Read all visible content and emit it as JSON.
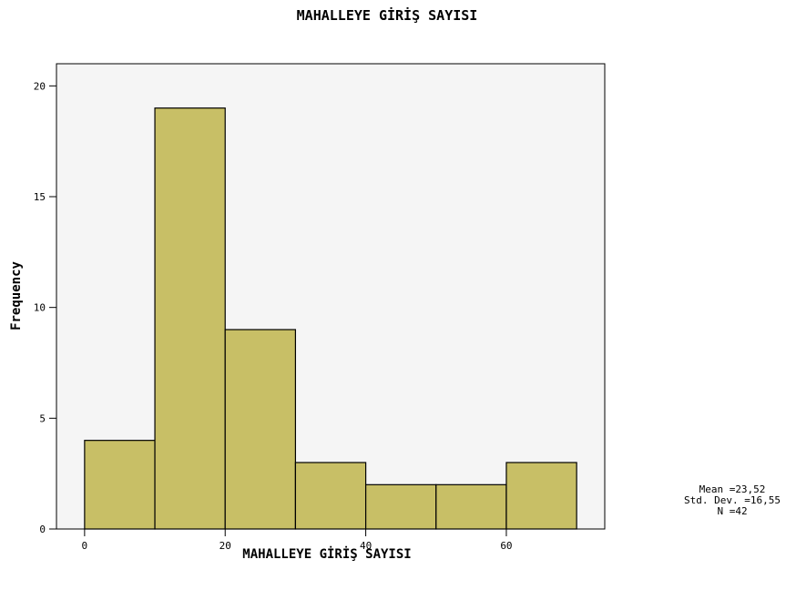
{
  "chart_data": {
    "type": "bar",
    "title": "MAHALLEYE GİRİŞ SAYISI",
    "xlabel": "MAHALLEYE GİRİŞ SAYISI",
    "ylabel": "Frequency",
    "bins": [
      {
        "start": 0,
        "end": 10,
        "count": 4
      },
      {
        "start": 10,
        "end": 20,
        "count": 19
      },
      {
        "start": 20,
        "end": 30,
        "count": 9
      },
      {
        "start": 30,
        "end": 40,
        "count": 3
      },
      {
        "start": 40,
        "end": 50,
        "count": 2
      },
      {
        "start": 50,
        "end": 60,
        "count": 2
      },
      {
        "start": 60,
        "end": 70,
        "count": 3
      }
    ],
    "xticks": [
      0,
      20,
      40,
      60
    ],
    "yticks": [
      0,
      5,
      10,
      15,
      20
    ],
    "xlim": [
      -4,
      74
    ],
    "ylim": [
      0,
      21
    ],
    "bar_color": "#c8bf66",
    "plot_background": "#f5f5f5",
    "stats": {
      "mean": "Mean =23,52",
      "std": "Std. Dev. =16,55",
      "n": "N =42"
    }
  }
}
